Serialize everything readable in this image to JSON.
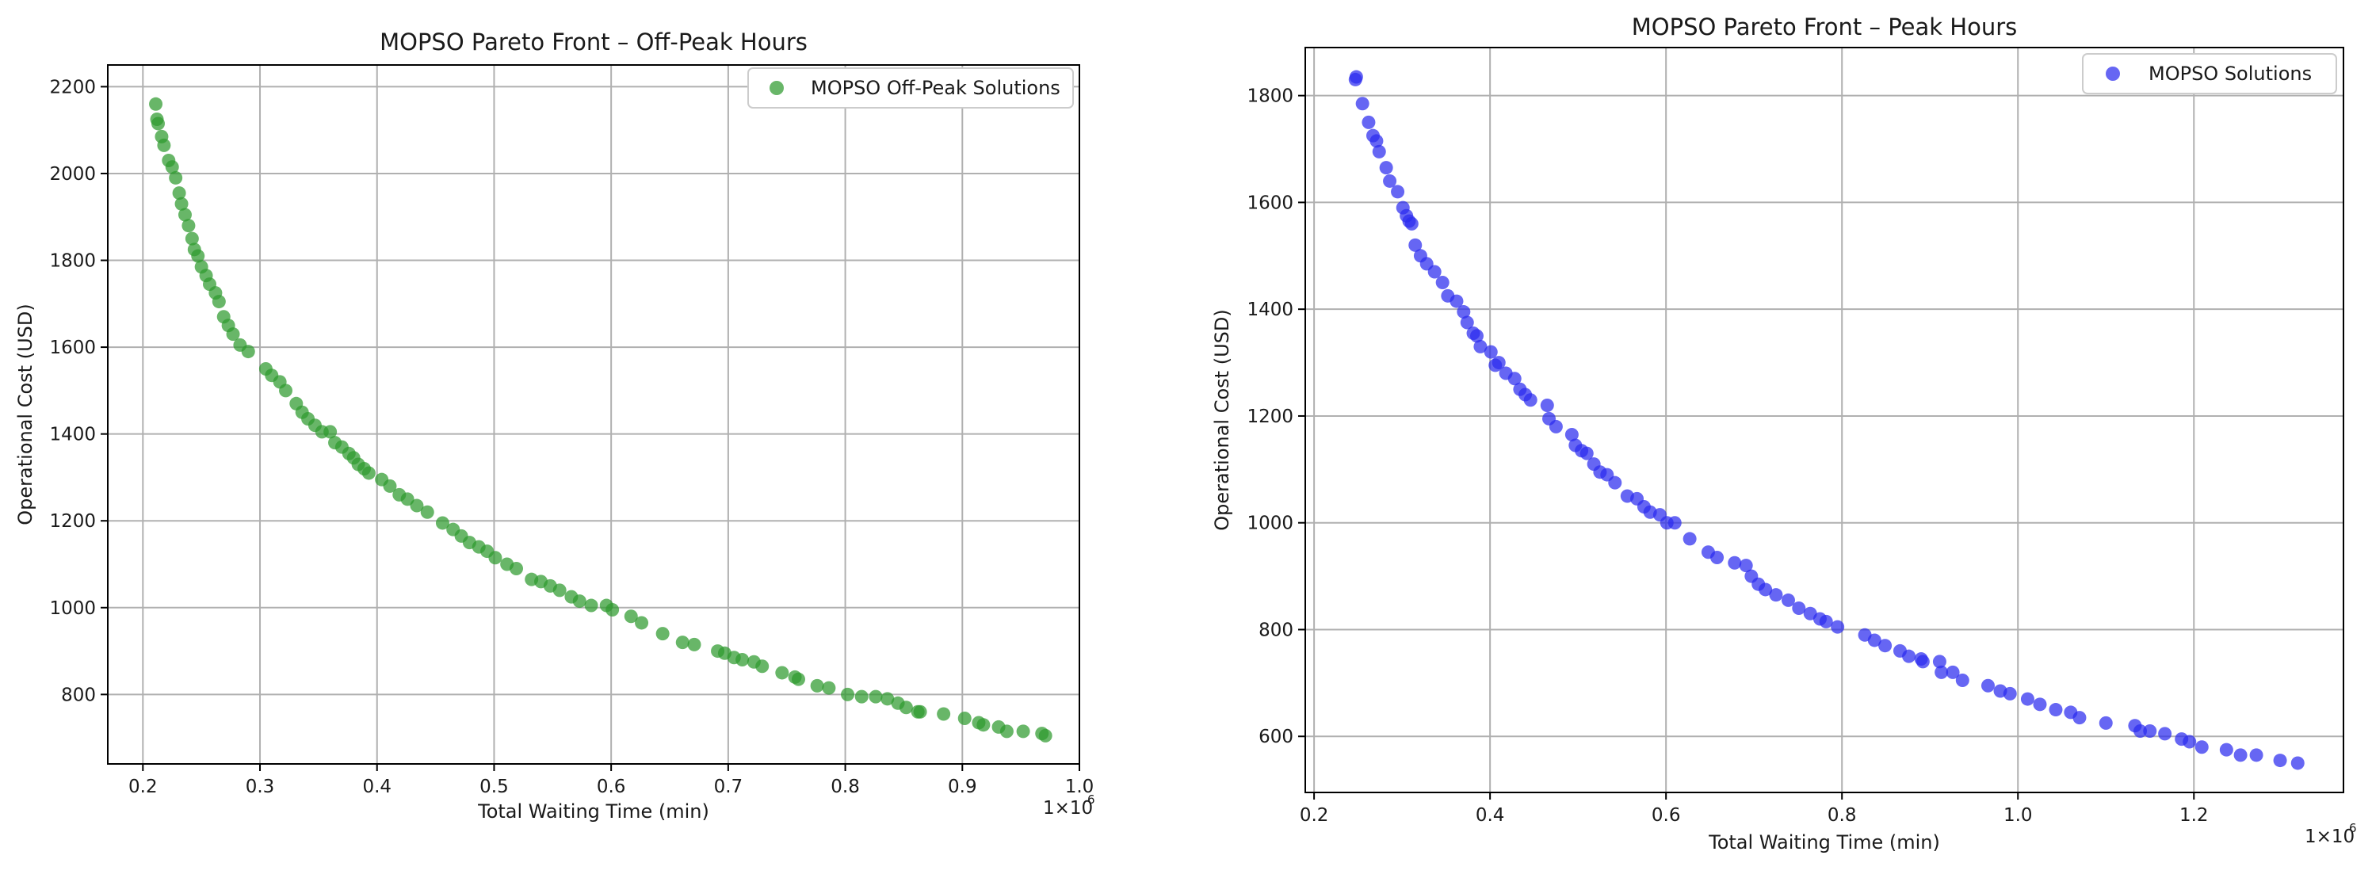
{
  "chart_data": [
    {
      "type": "scatter",
      "title": "MOPSO Pareto Front – Off-Peak Hours",
      "xlabel": "Total Waiting Time (min)",
      "ylabel": "Operational Cost (USD)",
      "x_multiplier": "1e6",
      "xlim": [
        0.17,
        1.0
      ],
      "ylim": [
        640,
        2250
      ],
      "xticks": [
        0.2,
        0.3,
        0.4,
        0.5,
        0.6,
        0.7,
        0.8,
        0.9,
        1.0
      ],
      "xtick_labels": [
        "0.2",
        "0.3",
        "0.4",
        "0.5",
        "0.6",
        "0.7",
        "0.8",
        "0.9",
        "1.0"
      ],
      "yticks": [
        800,
        1000,
        1200,
        1400,
        1600,
        1800,
        2000,
        2200
      ],
      "ytick_labels": [
        "800",
        "1000",
        "1200",
        "1400",
        "1600",
        "1800",
        "2000",
        "2200"
      ],
      "grid": true,
      "legend_position": "top-right",
      "series": [
        {
          "name": "MOPSO Off-Peak Solutions",
          "color": "#2e9a2e",
          "points": [
            [
              0.211,
              2160
            ],
            [
              0.212,
              2125
            ],
            [
              0.213,
              2115
            ],
            [
              0.216,
              2085
            ],
            [
              0.218,
              2065
            ],
            [
              0.222,
              2030
            ],
            [
              0.225,
              2015
            ],
            [
              0.228,
              1990
            ],
            [
              0.231,
              1955
            ],
            [
              0.233,
              1930
            ],
            [
              0.236,
              1905
            ],
            [
              0.239,
              1880
            ],
            [
              0.242,
              1850
            ],
            [
              0.244,
              1825
            ],
            [
              0.247,
              1810
            ],
            [
              0.25,
              1785
            ],
            [
              0.254,
              1765
            ],
            [
              0.257,
              1745
            ],
            [
              0.262,
              1725
            ],
            [
              0.265,
              1705
            ],
            [
              0.269,
              1670
            ],
            [
              0.273,
              1650
            ],
            [
              0.277,
              1630
            ],
            [
              0.283,
              1605
            ],
            [
              0.29,
              1590
            ],
            [
              0.305,
              1550
            ],
            [
              0.31,
              1535
            ],
            [
              0.317,
              1520
            ],
            [
              0.322,
              1500
            ],
            [
              0.331,
              1470
            ],
            [
              0.336,
              1450
            ],
            [
              0.341,
              1435
            ],
            [
              0.347,
              1420
            ],
            [
              0.353,
              1405
            ],
            [
              0.36,
              1405
            ],
            [
              0.364,
              1380
            ],
            [
              0.37,
              1370
            ],
            [
              0.376,
              1355
            ],
            [
              0.38,
              1345
            ],
            [
              0.384,
              1330
            ],
            [
              0.389,
              1320
            ],
            [
              0.393,
              1310
            ],
            [
              0.404,
              1295
            ],
            [
              0.411,
              1280
            ],
            [
              0.419,
              1260
            ],
            [
              0.426,
              1250
            ],
            [
              0.434,
              1235
            ],
            [
              0.443,
              1220
            ],
            [
              0.456,
              1195
            ],
            [
              0.465,
              1180
            ],
            [
              0.472,
              1165
            ],
            [
              0.479,
              1150
            ],
            [
              0.487,
              1140
            ],
            [
              0.494,
              1130
            ],
            [
              0.501,
              1115
            ],
            [
              0.511,
              1100
            ],
            [
              0.519,
              1090
            ],
            [
              0.532,
              1065
            ],
            [
              0.54,
              1060
            ],
            [
              0.548,
              1050
            ],
            [
              0.556,
              1040
            ],
            [
              0.566,
              1025
            ],
            [
              0.573,
              1015
            ],
            [
              0.583,
              1005
            ],
            [
              0.596,
              1005
            ],
            [
              0.601,
              995
            ],
            [
              0.617,
              980
            ],
            [
              0.626,
              965
            ],
            [
              0.644,
              940
            ],
            [
              0.661,
              920
            ],
            [
              0.671,
              915
            ],
            [
              0.691,
              900
            ],
            [
              0.697,
              895
            ],
            [
              0.705,
              885
            ],
            [
              0.712,
              880
            ],
            [
              0.722,
              875
            ],
            [
              0.729,
              865
            ],
            [
              0.746,
              850
            ],
            [
              0.757,
              840
            ],
            [
              0.76,
              835
            ],
            [
              0.776,
              820
            ],
            [
              0.786,
              815
            ],
            [
              0.802,
              800
            ],
            [
              0.814,
              795
            ],
            [
              0.826,
              795
            ],
            [
              0.836,
              790
            ],
            [
              0.845,
              780
            ],
            [
              0.852,
              770
            ],
            [
              0.862,
              760
            ],
            [
              0.864,
              760
            ],
            [
              0.884,
              755
            ],
            [
              0.902,
              745
            ],
            [
              0.914,
              735
            ],
            [
              0.918,
              730
            ],
            [
              0.931,
              725
            ],
            [
              0.938,
              715
            ],
            [
              0.952,
              715
            ],
            [
              0.968,
              710
            ],
            [
              0.971,
              705
            ]
          ]
        }
      ]
    },
    {
      "type": "scatter",
      "title": "MOPSO Pareto Front – Peak Hours",
      "xlabel": "Total Waiting Time (min)",
      "ylabel": "Operational Cost (USD)",
      "x_multiplier": "1e6",
      "xlim": [
        0.19,
        1.37
      ],
      "ylim": [
        495,
        1890
      ],
      "xticks": [
        0.2,
        0.4,
        0.6,
        0.8,
        1.0,
        1.2
      ],
      "xtick_labels": [
        "0.2",
        "0.4",
        "0.6",
        "0.8",
        "1.0",
        "1.2"
      ],
      "yticks": [
        600,
        800,
        1000,
        1200,
        1400,
        1600,
        1800
      ],
      "ytick_labels": [
        "600",
        "800",
        "1000",
        "1200",
        "1400",
        "1600",
        "1800"
      ],
      "grid": true,
      "legend_position": "top-right",
      "series": [
        {
          "name": "MOPSO Solutions",
          "color": "#2b2bef",
          "points": [
            [
              0.247,
              1830
            ],
            [
              0.248,
              1835
            ],
            [
              0.255,
              1785
            ],
            [
              0.262,
              1750
            ],
            [
              0.267,
              1725
            ],
            [
              0.271,
              1715
            ],
            [
              0.274,
              1695
            ],
            [
              0.282,
              1665
            ],
            [
              0.286,
              1640
            ],
            [
              0.295,
              1620
            ],
            [
              0.301,
              1590
            ],
            [
              0.305,
              1575
            ],
            [
              0.308,
              1565
            ],
            [
              0.311,
              1560
            ],
            [
              0.315,
              1520
            ],
            [
              0.321,
              1500
            ],
            [
              0.328,
              1485
            ],
            [
              0.337,
              1470
            ],
            [
              0.346,
              1450
            ],
            [
              0.352,
              1425
            ],
            [
              0.362,
              1415
            ],
            [
              0.37,
              1395
            ],
            [
              0.374,
              1375
            ],
            [
              0.381,
              1355
            ],
            [
              0.385,
              1350
            ],
            [
              0.389,
              1330
            ],
            [
              0.401,
              1320
            ],
            [
              0.406,
              1295
            ],
            [
              0.41,
              1300
            ],
            [
              0.418,
              1280
            ],
            [
              0.428,
              1270
            ],
            [
              0.434,
              1250
            ],
            [
              0.44,
              1240
            ],
            [
              0.446,
              1230
            ],
            [
              0.465,
              1220
            ],
            [
              0.467,
              1195
            ],
            [
              0.475,
              1180
            ],
            [
              0.493,
              1165
            ],
            [
              0.497,
              1145
            ],
            [
              0.504,
              1135
            ],
            [
              0.51,
              1130
            ],
            [
              0.518,
              1110
            ],
            [
              0.525,
              1095
            ],
            [
              0.533,
              1090
            ],
            [
              0.542,
              1075
            ],
            [
              0.556,
              1050
            ],
            [
              0.567,
              1045
            ],
            [
              0.575,
              1030
            ],
            [
              0.582,
              1020
            ],
            [
              0.593,
              1015
            ],
            [
              0.601,
              1000
            ],
            [
              0.61,
              1000
            ],
            [
              0.627,
              970
            ],
            [
              0.648,
              945
            ],
            [
              0.658,
              935
            ],
            [
              0.678,
              925
            ],
            [
              0.691,
              920
            ],
            [
              0.697,
              900
            ],
            [
              0.705,
              885
            ],
            [
              0.713,
              875
            ],
            [
              0.725,
              865
            ],
            [
              0.739,
              855
            ],
            [
              0.751,
              840
            ],
            [
              0.764,
              830
            ],
            [
              0.775,
              820
            ],
            [
              0.782,
              815
            ],
            [
              0.795,
              805
            ],
            [
              0.826,
              790
            ],
            [
              0.837,
              780
            ],
            [
              0.849,
              770
            ],
            [
              0.866,
              760
            ],
            [
              0.876,
              750
            ],
            [
              0.89,
              745
            ],
            [
              0.892,
              740
            ],
            [
              0.911,
              740
            ],
            [
              0.913,
              720
            ],
            [
              0.926,
              720
            ],
            [
              0.937,
              705
            ],
            [
              0.966,
              695
            ],
            [
              0.98,
              685
            ],
            [
              0.991,
              680
            ],
            [
              1.011,
              670
            ],
            [
              1.025,
              660
            ],
            [
              1.043,
              650
            ],
            [
              1.06,
              645
            ],
            [
              1.07,
              635
            ],
            [
              1.1,
              625
            ],
            [
              1.133,
              620
            ],
            [
              1.139,
              610
            ],
            [
              1.15,
              610
            ],
            [
              1.167,
              605
            ],
            [
              1.186,
              595
            ],
            [
              1.195,
              590
            ],
            [
              1.209,
              580
            ],
            [
              1.237,
              575
            ],
            [
              1.253,
              565
            ],
            [
              1.271,
              565
            ],
            [
              1.298,
              555
            ],
            [
              1.318,
              550
            ]
          ]
        }
      ]
    }
  ]
}
